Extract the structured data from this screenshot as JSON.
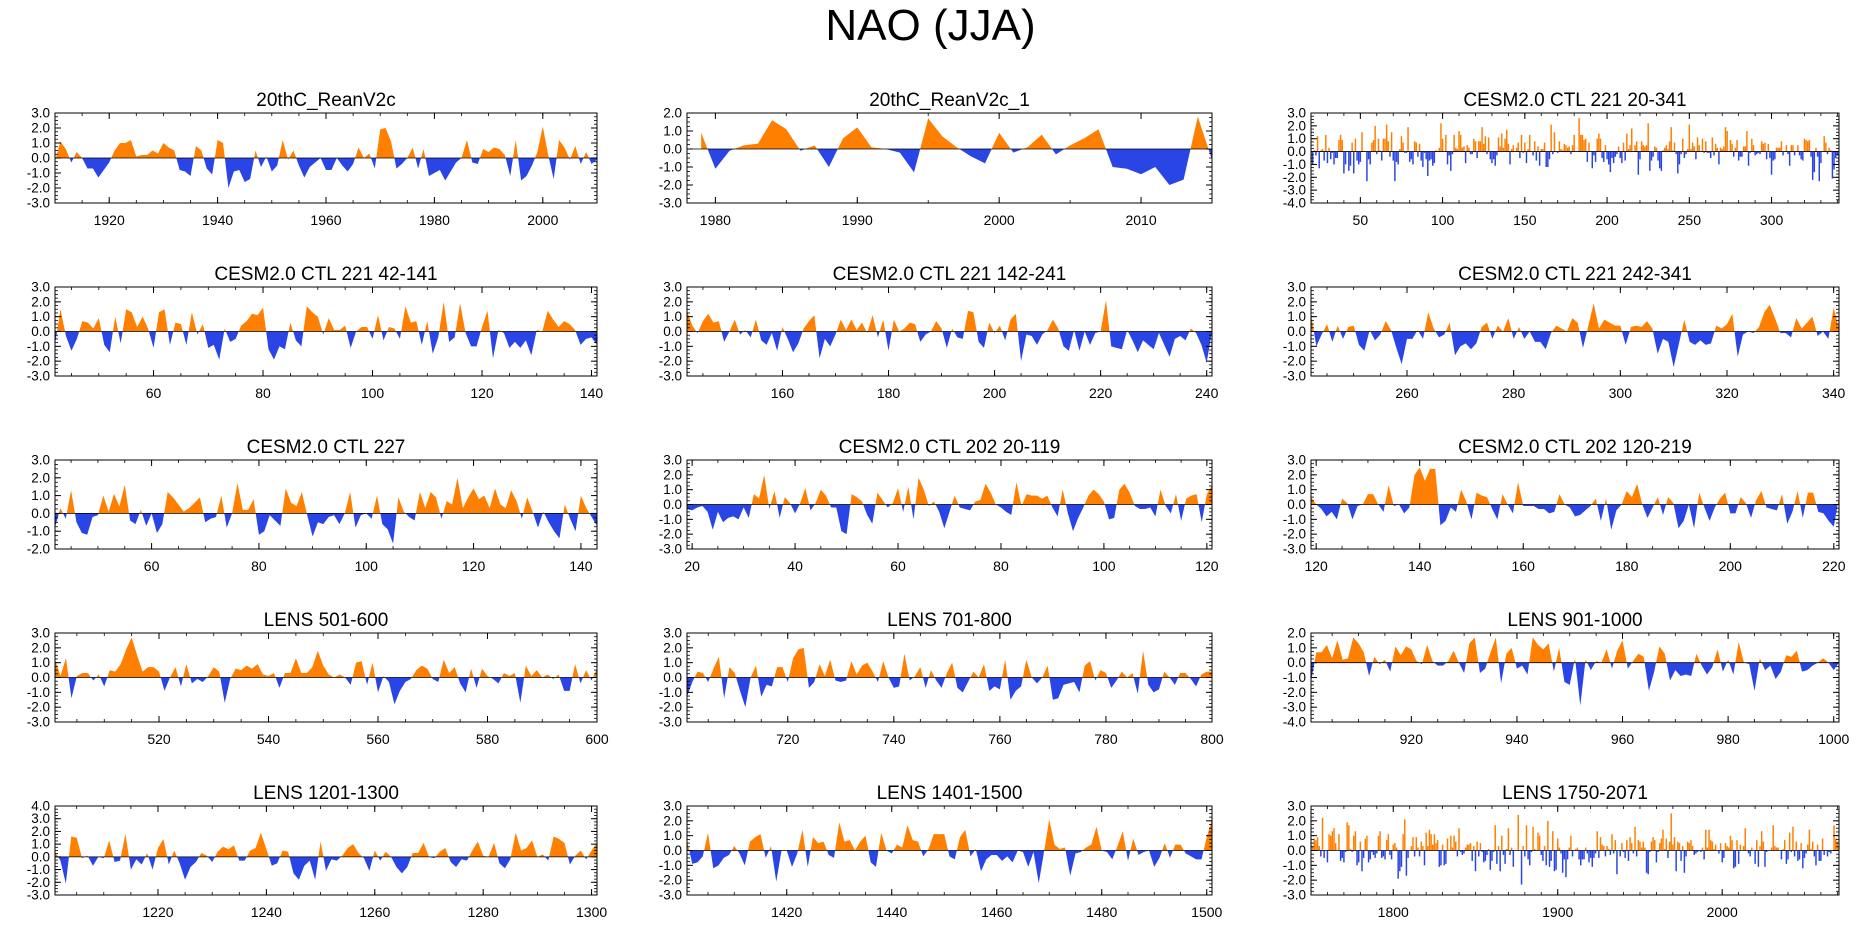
{
  "title": "NAO (JJA)",
  "colors": {
    "positive": "#ff8000",
    "negative": "#2a45e6",
    "axis": "#000000",
    "zero_line": "#000000"
  },
  "chart_data": [
    {
      "type": "area",
      "title": "20thC_ReanV2c",
      "x_range": [
        1910,
        2010
      ],
      "ylim": [
        -3,
        3
      ],
      "y_ticks": [
        "3.0",
        "2.0",
        "1.0",
        "0.0",
        "-1.0",
        "-2.0",
        "-3.0"
      ],
      "x_ticks": [
        1920,
        1940,
        1960,
        1980,
        2000
      ],
      "variability": 1.0,
      "seed": 11
    },
    {
      "type": "area",
      "title": "20thC_ReanV2c_1",
      "x_range": [
        1978,
        2015
      ],
      "ylim": [
        -3,
        2
      ],
      "y_ticks": [
        "2.0",
        "1.0",
        "0.0",
        "-1.0",
        "-2.0",
        "-3.0"
      ],
      "x_ticks": [
        1980,
        1990,
        2000,
        2010
      ],
      "values": [
        0.9,
        -1.1,
        -0.1,
        0.2,
        0.3,
        1.6,
        1.1,
        -0.1,
        0.2,
        -1.0,
        0.6,
        1.2,
        0.1,
        0.0,
        -0.2,
        -1.3,
        1.7,
        0.7,
        0.1,
        -0.4,
        -0.8,
        0.9,
        -0.2,
        0.1,
        0.8,
        -0.3,
        0.2,
        0.6,
        1.1,
        -1.0,
        -1.1,
        -1.4,
        -1.0,
        -2.0,
        -1.7,
        1.8,
        -0.6
      ]
    },
    {
      "type": "area",
      "title": "CESM2.0 CTL 221 20-341",
      "x_range": [
        20,
        341
      ],
      "ylim": [
        -4,
        3
      ],
      "y_ticks": [
        "3.0",
        "2.0",
        "1.0",
        "0.0",
        "-1.0",
        "-2.0",
        "-3.0",
        "-4.0"
      ],
      "x_ticks": [
        50,
        100,
        150,
        200,
        250,
        300
      ],
      "variability": 1.0,
      "seed": 23,
      "thin": true
    },
    {
      "type": "area",
      "title": "CESM2.0 CTL 221 42-141",
      "x_range": [
        42,
        141
      ],
      "ylim": [
        -3,
        3
      ],
      "y_ticks": [
        "3.0",
        "2.0",
        "1.0",
        "0.0",
        "-1.0",
        "-2.0",
        "-3.0"
      ],
      "x_ticks": [
        60,
        80,
        100,
        120,
        140
      ],
      "variability": 1.0,
      "seed": 37
    },
    {
      "type": "area",
      "title": "CESM2.0 CTL 221 142-241",
      "x_range": [
        142,
        241
      ],
      "ylim": [
        -3,
        3
      ],
      "y_ticks": [
        "3.0",
        "2.0",
        "1.0",
        "0.0",
        "-1.0",
        "-2.0",
        "-3.0"
      ],
      "x_ticks": [
        160,
        180,
        200,
        220,
        240
      ],
      "variability": 1.0,
      "seed": 41
    },
    {
      "type": "area",
      "title": "CESM2.0 CTL 221 242-341",
      "x_range": [
        242,
        341
      ],
      "ylim": [
        -3,
        3
      ],
      "y_ticks": [
        "3.0",
        "2.0",
        "1.0",
        "0.0",
        "-1.0",
        "-2.0",
        "-3.0"
      ],
      "x_ticks": [
        260,
        280,
        300,
        320,
        340
      ],
      "variability": 1.0,
      "seed": 53
    },
    {
      "type": "area",
      "title": "CESM2.0 CTL 227",
      "x_range": [
        42,
        143
      ],
      "ylim": [
        -2,
        3
      ],
      "y_ticks": [
        "3.0",
        "2.0",
        "1.0",
        "0.0",
        "-1.0",
        "-2.0"
      ],
      "x_ticks": [
        60,
        80,
        100,
        120,
        140
      ],
      "variability": 0.9,
      "seed": 67
    },
    {
      "type": "area",
      "title": "CESM2.0 CTL 202 20-119",
      "x_range": [
        19,
        121
      ],
      "ylim": [
        -3,
        3
      ],
      "y_ticks": [
        "3.0",
        "2.0",
        "1.0",
        "0.0",
        "-1.0",
        "-2.0",
        "-3.0"
      ],
      "x_ticks": [
        20,
        40,
        60,
        80,
        100,
        120
      ],
      "variability": 1.0,
      "seed": 71
    },
    {
      "type": "area",
      "title": "CESM2.0 CTL 202 120-219",
      "x_range": [
        119,
        221
      ],
      "ylim": [
        -3,
        3
      ],
      "y_ticks": [
        "3.0",
        "2.0",
        "1.0",
        "0.0",
        "-1.0",
        "-2.0",
        "-3.0"
      ],
      "x_ticks": [
        120,
        140,
        160,
        180,
        200,
        220
      ],
      "variability": 1.0,
      "seed": 83
    },
    {
      "type": "area",
      "title": "LENS 501-600",
      "x_range": [
        501,
        600
      ],
      "ylim": [
        -3,
        3
      ],
      "y_ticks": [
        "3.0",
        "2.0",
        "1.0",
        "0.0",
        "-1.0",
        "-2.0",
        "-3.0"
      ],
      "x_ticks": [
        520,
        540,
        560,
        580,
        600
      ],
      "variability": 1.0,
      "seed": 97
    },
    {
      "type": "area",
      "title": "LENS 701-800",
      "x_range": [
        701,
        800
      ],
      "ylim": [
        -3,
        3
      ],
      "y_ticks": [
        "3.0",
        "2.0",
        "1.0",
        "0.0",
        "-1.0",
        "-2.0",
        "-3.0"
      ],
      "x_ticks": [
        720,
        740,
        760,
        780,
        800
      ],
      "variability": 1.0,
      "seed": 101
    },
    {
      "type": "area",
      "title": "LENS 901-1000",
      "x_range": [
        901,
        1001
      ],
      "ylim": [
        -4,
        2
      ],
      "y_ticks": [
        "2.0",
        "1.0",
        "0.0",
        "-1.0",
        "-2.0",
        "-3.0",
        "-4.0"
      ],
      "x_ticks": [
        920,
        940,
        960,
        980,
        1000
      ],
      "variability": 1.0,
      "seed": 113
    },
    {
      "type": "area",
      "title": "LENS 1201-1300",
      "x_range": [
        1201,
        1301
      ],
      "ylim": [
        -3,
        4
      ],
      "y_ticks": [
        "4.0",
        "3.0",
        "2.0",
        "1.0",
        "0.0",
        "-1.0",
        "-2.0",
        "-3.0"
      ],
      "x_ticks": [
        1220,
        1240,
        1260,
        1280,
        1300
      ],
      "variability": 1.0,
      "seed": 127
    },
    {
      "type": "area",
      "title": "LENS 1401-1500",
      "x_range": [
        1401,
        1501
      ],
      "ylim": [
        -3,
        3
      ],
      "y_ticks": [
        "3.0",
        "2.0",
        "1.0",
        "0.0",
        "-1.0",
        "-2.0",
        "-3.0"
      ],
      "x_ticks": [
        1420,
        1440,
        1460,
        1480,
        1500
      ],
      "variability": 1.0,
      "seed": 131
    },
    {
      "type": "area",
      "title": "LENS 1750-2071",
      "x_range": [
        1750,
        2071
      ],
      "ylim": [
        -3,
        3
      ],
      "y_ticks": [
        "3.0",
        "2.0",
        "1.0",
        "0.0",
        "-1.0",
        "-2.0",
        "-3.0"
      ],
      "x_ticks": [
        1800,
        1900,
        2000
      ],
      "variability": 1.0,
      "seed": 149,
      "thin": true
    }
  ]
}
